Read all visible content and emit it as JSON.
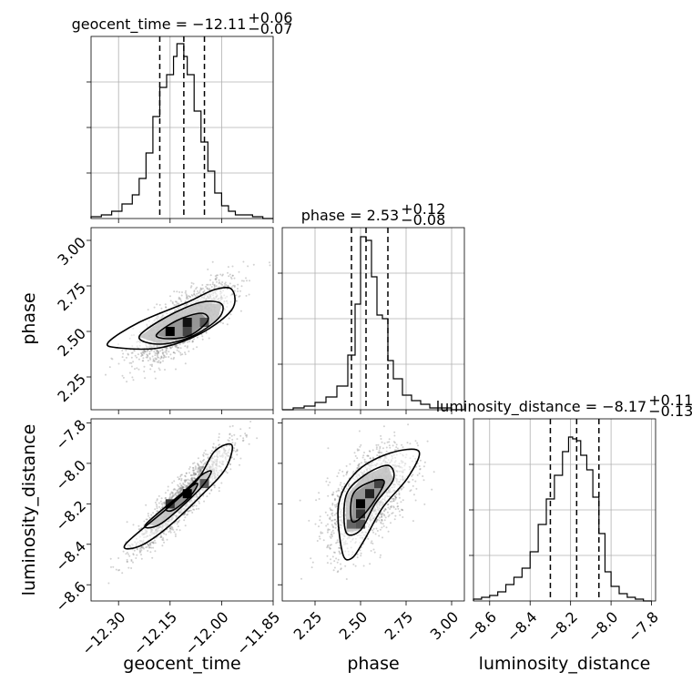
{
  "chart_data": {
    "type": "corner",
    "parameters": [
      {
        "name": "geocent_time",
        "axis_label": "geocent_time",
        "title_prefix": "geocent_time = ",
        "median": "−12.11",
        "plus": "+0.06",
        "minus": "−0.07",
        "range": [
          -12.38,
          -11.85
        ],
        "ticks": [
          -12.3,
          -12.15,
          -12.0,
          -11.85
        ],
        "tick_labels": [
          "−12.30",
          "−12.15",
          "−12.00",
          "−11.85"
        ],
        "quantiles": [
          -12.18,
          -12.11,
          -12.05
        ],
        "hist_edges": [
          -12.38,
          -12.35,
          -12.32,
          -12.29,
          -12.26,
          -12.24,
          -12.22,
          -12.2,
          -12.18,
          -12.16,
          -12.14,
          -12.13,
          -12.12,
          -12.11,
          -12.1,
          -12.08,
          -12.06,
          -12.04,
          -12.02,
          -12.0,
          -11.98,
          -11.96,
          -11.94,
          -11.91,
          -11.88,
          -11.85
        ],
        "hist_counts": [
          0.01,
          0.02,
          0.04,
          0.08,
          0.13,
          0.22,
          0.36,
          0.56,
          0.72,
          0.79,
          0.89,
          0.96,
          0.96,
          0.89,
          0.79,
          0.59,
          0.42,
          0.26,
          0.14,
          0.07,
          0.04,
          0.02,
          0.02,
          0.01,
          0.0
        ]
      },
      {
        "name": "phase",
        "axis_label": "phase",
        "title_prefix": "phase = ",
        "median": "2.53",
        "plus": "+0.12",
        "minus": "−0.08",
        "range": [
          2.07,
          3.07
        ],
        "ticks": [
          2.25,
          2.5,
          2.75,
          3.0
        ],
        "tick_labels": [
          "2.25",
          "2.50",
          "2.75",
          "3.00"
        ],
        "quantiles": [
          2.45,
          2.53,
          2.65
        ],
        "hist_edges": [
          2.07,
          2.13,
          2.19,
          2.25,
          2.31,
          2.37,
          2.43,
          2.47,
          2.5,
          2.53,
          2.56,
          2.59,
          2.62,
          2.65,
          2.68,
          2.73,
          2.78,
          2.83,
          2.88,
          2.94,
          3.0,
          3.07
        ],
        "hist_counts": [
          0.0,
          0.01,
          0.02,
          0.04,
          0.07,
          0.13,
          0.3,
          0.58,
          0.95,
          0.93,
          0.73,
          0.52,
          0.5,
          0.27,
          0.17,
          0.08,
          0.05,
          0.03,
          0.01,
          0.01,
          0.0
        ]
      },
      {
        "name": "luminosity_distance",
        "axis_label": "luminosity_distance",
        "title_prefix": "luminosity_distance = ",
        "median": "−8.17",
        "plus": "+0.11",
        "minus": "−0.13",
        "range": [
          -8.68,
          -7.78
        ],
        "ticks": [
          -8.6,
          -8.4,
          -8.2,
          -8.0,
          -7.8
        ],
        "tick_labels": [
          "−8.6",
          "−8.4",
          "−8.2",
          "−8.0",
          "−7.8"
        ],
        "quantiles": [
          -8.3,
          -8.17,
          -8.06
        ],
        "hist_edges": [
          -8.68,
          -8.64,
          -8.6,
          -8.56,
          -8.52,
          -8.48,
          -8.44,
          -8.4,
          -8.36,
          -8.32,
          -8.28,
          -8.24,
          -8.21,
          -8.19,
          -8.17,
          -8.15,
          -8.12,
          -8.09,
          -8.06,
          -8.03,
          -8.0,
          -7.96,
          -7.92,
          -7.88,
          -7.84,
          -7.8
        ],
        "hist_counts": [
          0.01,
          0.02,
          0.03,
          0.05,
          0.09,
          0.13,
          0.18,
          0.27,
          0.42,
          0.56,
          0.69,
          0.82,
          0.9,
          0.89,
          0.88,
          0.8,
          0.72,
          0.57,
          0.37,
          0.16,
          0.08,
          0.04,
          0.02,
          0.01,
          0.0
        ]
      }
    ],
    "pairs": [
      {
        "x": "geocent_time",
        "y": "phase",
        "scatter_center": [
          -12.11,
          2.55
        ],
        "scatter_sd": [
          0.07,
          0.11
        ],
        "correlation": 0.78,
        "density_squares": [
          {
            "x": -12.15,
            "y": 2.5,
            "shade": "#000000"
          },
          {
            "x": -12.1,
            "y": 2.55,
            "shade": "#111111"
          },
          {
            "x": -12.1,
            "y": 2.5,
            "shade": "#444444"
          },
          {
            "x": -12.05,
            "y": 2.55,
            "shade": "#555555"
          }
        ],
        "contours": [
          [
            [
              -12.33,
              2.44
            ],
            [
              -12.24,
              2.55
            ],
            [
              -12.1,
              2.66
            ],
            [
              -12.02,
              2.73
            ],
            [
              -11.97,
              2.73
            ],
            [
              -11.97,
              2.62
            ],
            [
              -12.06,
              2.49
            ],
            [
              -12.18,
              2.41
            ],
            [
              -12.3,
              2.41
            ]
          ],
          [
            [
              -12.24,
              2.47
            ],
            [
              -12.16,
              2.58
            ],
            [
              -12.06,
              2.66
            ],
            [
              -12.0,
              2.65
            ],
            [
              -12.01,
              2.57
            ],
            [
              -12.09,
              2.47
            ],
            [
              -12.18,
              2.43
            ]
          ],
          [
            [
              -12.19,
              2.48
            ],
            [
              -12.13,
              2.56
            ],
            [
              -12.06,
              2.6
            ],
            [
              -12.04,
              2.56
            ],
            [
              -12.09,
              2.48
            ],
            [
              -12.15,
              2.46
            ]
          ]
        ]
      },
      {
        "x": "geocent_time",
        "y": "luminosity_distance",
        "scatter_center": [
          -12.11,
          -8.17
        ],
        "scatter_sd": [
          0.07,
          0.13
        ],
        "correlation": 0.92,
        "density_squares": [
          {
            "x": -12.1,
            "y": -8.15,
            "shade": "#000000"
          },
          {
            "x": -12.15,
            "y": -8.2,
            "shade": "#333333"
          },
          {
            "x": -12.05,
            "y": -8.1,
            "shade": "#555555"
          }
        ],
        "contours": [
          [
            [
              -12.28,
              -8.4
            ],
            [
              -12.15,
              -8.21
            ],
            [
              -12.07,
              -8.08
            ],
            [
              -12.02,
              -7.94
            ],
            [
              -11.97,
              -7.91
            ],
            [
              -11.99,
              -8.03
            ],
            [
              -12.06,
              -8.16
            ],
            [
              -12.16,
              -8.32
            ],
            [
              -12.24,
              -8.41
            ]
          ],
          [
            [
              -12.22,
              -8.3
            ],
            [
              -12.11,
              -8.14
            ],
            [
              -12.06,
              -8.06
            ],
            [
              -12.03,
              -8.04
            ],
            [
              -12.06,
              -8.12
            ],
            [
              -12.14,
              -8.25
            ],
            [
              -12.19,
              -8.31
            ]
          ],
          [
            [
              -12.16,
              -8.22
            ],
            [
              -12.1,
              -8.13
            ],
            [
              -12.07,
              -8.1
            ],
            [
              -12.09,
              -8.16
            ],
            [
              -12.14,
              -8.23
            ]
          ]
        ]
      },
      {
        "x": "phase",
        "y": "luminosity_distance",
        "scatter_center": [
          2.54,
          -8.17
        ],
        "scatter_sd": [
          0.11,
          0.13
        ],
        "correlation": 0.55,
        "density_squares": [
          {
            "x": 2.5,
            "y": -8.2,
            "shade": "#000000"
          },
          {
            "x": 2.55,
            "y": -8.15,
            "shade": "#222222"
          },
          {
            "x": 2.5,
            "y": -8.25,
            "shade": "#333333"
          },
          {
            "x": 2.6,
            "y": -8.1,
            "shade": "#444444"
          },
          {
            "x": 2.45,
            "y": -8.3,
            "shade": "#666666"
          },
          {
            "x": 2.5,
            "y": -8.3,
            "shade": "#555555"
          }
        ],
        "contours": [
          [
            [
              2.4,
              -8.44
            ],
            [
              2.38,
              -8.2
            ],
            [
              2.48,
              -8.04
            ],
            [
              2.66,
              -7.95
            ],
            [
              2.82,
              -7.94
            ],
            [
              2.76,
              -8.07
            ],
            [
              2.62,
              -8.22
            ],
            [
              2.52,
              -8.38
            ],
            [
              2.45,
              -8.47
            ]
          ],
          [
            [
              2.42,
              -8.34
            ],
            [
              2.42,
              -8.16
            ],
            [
              2.52,
              -8.06
            ],
            [
              2.65,
              -8.01
            ],
            [
              2.68,
              -8.08
            ],
            [
              2.58,
              -8.2
            ],
            [
              2.5,
              -8.33
            ]
          ],
          [
            [
              2.45,
              -8.28
            ],
            [
              2.46,
              -8.15
            ],
            [
              2.56,
              -8.09
            ],
            [
              2.63,
              -8.09
            ],
            [
              2.58,
              -8.18
            ],
            [
              2.5,
              -8.27
            ]
          ]
        ]
      }
    ],
    "grid": true
  }
}
